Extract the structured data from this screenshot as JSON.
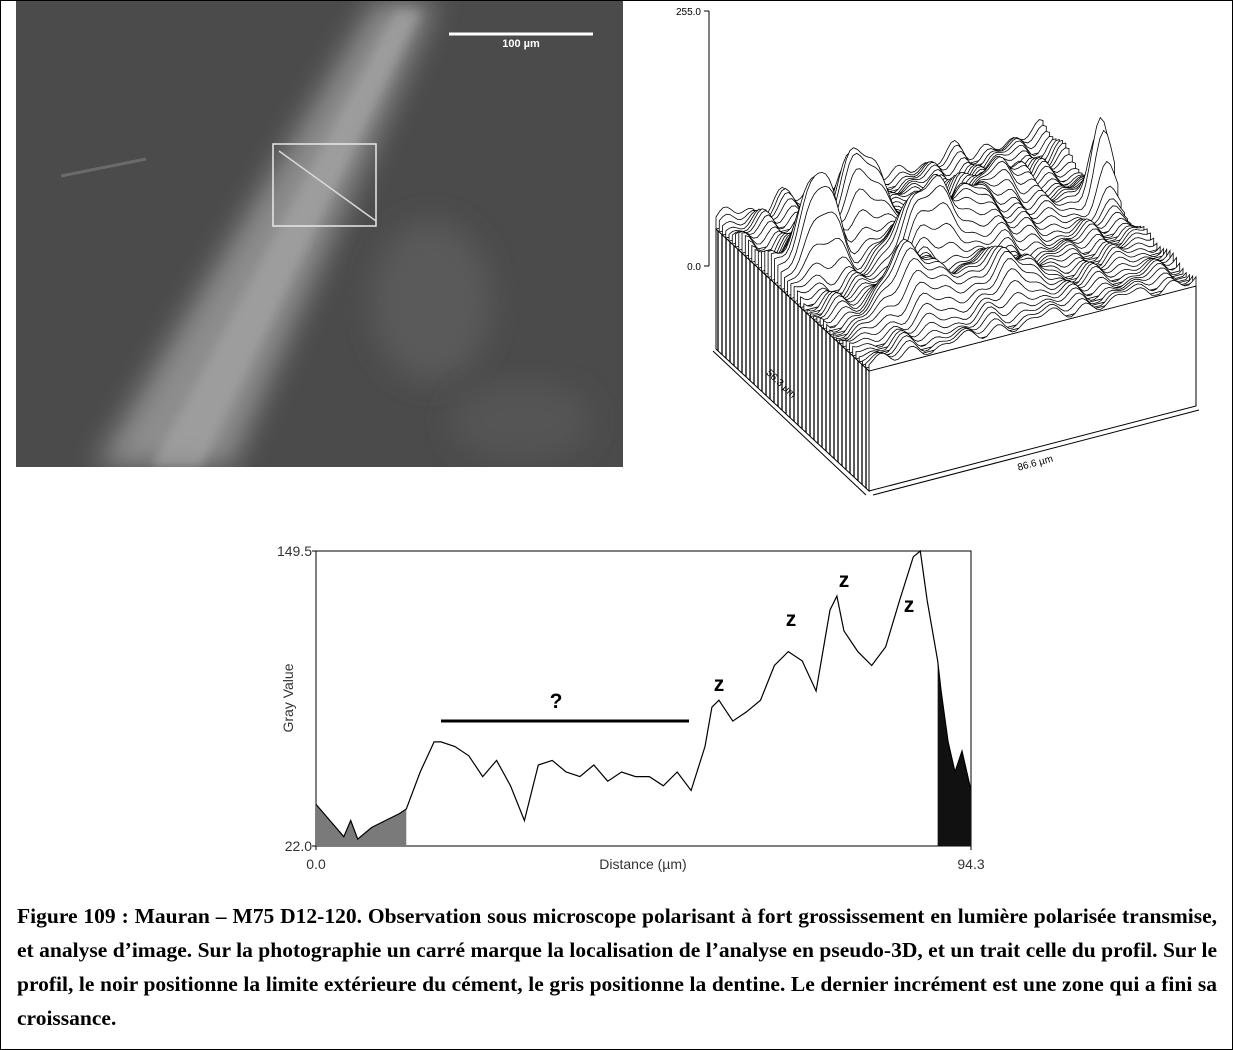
{
  "photo": {
    "scale_bar": "100 µm"
  },
  "surface_plot": {
    "z_top": "255.0",
    "z_bottom": "0.0",
    "depth_label": "56.3 µm",
    "width_label": "86.6 µm"
  },
  "chart_data": {
    "type": "line",
    "xlabel": "Distance (µm)",
    "ylabel": "Gray Value",
    "color": "#000000",
    "x": [
      0,
      2,
      4,
      5,
      6,
      8,
      10,
      12,
      13,
      15,
      17,
      18,
      20,
      22,
      24,
      26,
      28,
      30,
      32,
      34,
      36,
      38,
      40,
      42,
      44,
      46,
      48,
      50,
      52,
      54,
      56,
      57,
      58,
      60,
      62,
      64,
      66,
      68,
      70,
      72,
      74,
      75,
      76,
      78,
      80,
      82,
      84,
      86,
      87,
      88,
      89.5,
      90,
      91,
      92,
      93,
      94.3
    ],
    "values": [
      40,
      33,
      26,
      33,
      25,
      30,
      33,
      36,
      38,
      54,
      67,
      67,
      65,
      61,
      52,
      59,
      48,
      33,
      57,
      59,
      54,
      52,
      57,
      50,
      54,
      52,
      52,
      48,
      54,
      46,
      65,
      82,
      85,
      76,
      80,
      85,
      100,
      106,
      102,
      89,
      124,
      130,
      115,
      106,
      100,
      108,
      128,
      147,
      149.5,
      128,
      102,
      89,
      67,
      54,
      63,
      46
    ],
    "xlim": [
      0,
      94.3
    ],
    "ylim": [
      22,
      149.5
    ],
    "xticks": [
      {
        "value": 0,
        "label": "0.0"
      },
      94.3
    ],
    "yticks": [
      {
        "value": 22,
        "label": "22.0"
      },
      149.5
    ],
    "regions": [
      {
        "from": 0,
        "to": 13,
        "color": "#7a7a7a"
      },
      {
        "from": 89.5,
        "to": 94.3,
        "color": "#111111"
      }
    ],
    "annotations": [
      "?",
      "z",
      "z",
      "z",
      "z"
    ]
  },
  "caption": "Figure 109 : Mauran – M75 D12-120. Observation sous microscope polarisant à fort grossissement en lumière polarisée transmise, et analyse d’image. Sur la photographie un carré marque la localisation de l’analyse en pseudo-3D, et un trait celle du profil. Sur le profil, le noir positionne la limite extérieure du cément, le gris positionne la dentine. Le dernier incrément est une zone qui a fini sa croissance."
}
